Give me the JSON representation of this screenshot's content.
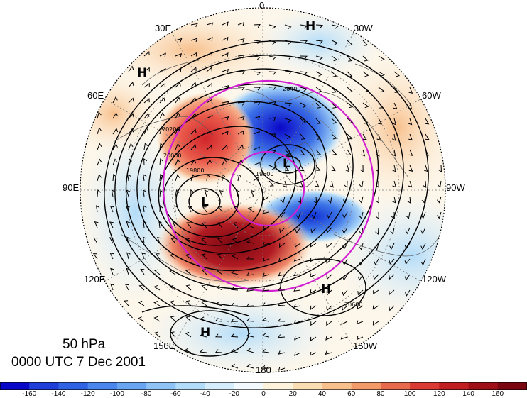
{
  "longitude_labels": [
    {
      "id": "0",
      "text": "0"
    },
    {
      "id": "30w",
      "text": "30W"
    },
    {
      "id": "60w",
      "text": "60W"
    },
    {
      "id": "90w",
      "text": "90W"
    },
    {
      "id": "120w",
      "text": "120W"
    },
    {
      "id": "150w",
      "text": "150W"
    },
    {
      "id": "180",
      "text": "180"
    },
    {
      "id": "150e",
      "text": "150E"
    },
    {
      "id": "120e",
      "text": "120E"
    },
    {
      "id": "90e",
      "text": "90E"
    },
    {
      "id": "60e",
      "text": "60E"
    },
    {
      "id": "30e",
      "text": "30E"
    }
  ],
  "pressure_systems": [
    "H",
    "H",
    "L",
    "L",
    "H",
    "H"
  ],
  "contour_labels": [
    "20400",
    "20200",
    "20000",
    "19800",
    "19600",
    "20600"
  ],
  "caption": {
    "level": "50 hPa",
    "time": "0000 UTC 7 Dec 2001"
  },
  "colorbar": {
    "ticks": [
      "-160",
      "-140",
      "-120",
      "-100",
      "-80",
      "-60",
      "-40",
      "-20",
      "0",
      "20",
      "40",
      "60",
      "80",
      "100",
      "120",
      "140",
      "160"
    ],
    "colors": [
      "#0a08c8",
      "#1f3fd8",
      "#2f63e4",
      "#4a86ec",
      "#6aa5f1",
      "#8fc2f5",
      "#b3dcf8",
      "#d6eefb",
      "#f2f9ff",
      "#fdf2dc",
      "#fbddb4",
      "#f8c08d",
      "#f29a6a",
      "#e86a4e",
      "#d93b34",
      "#c01d22",
      "#9e0f18",
      "#7a0710"
    ]
  },
  "style": {
    "circle_color": "#d21fd2",
    "contour_color": "#000000"
  }
}
